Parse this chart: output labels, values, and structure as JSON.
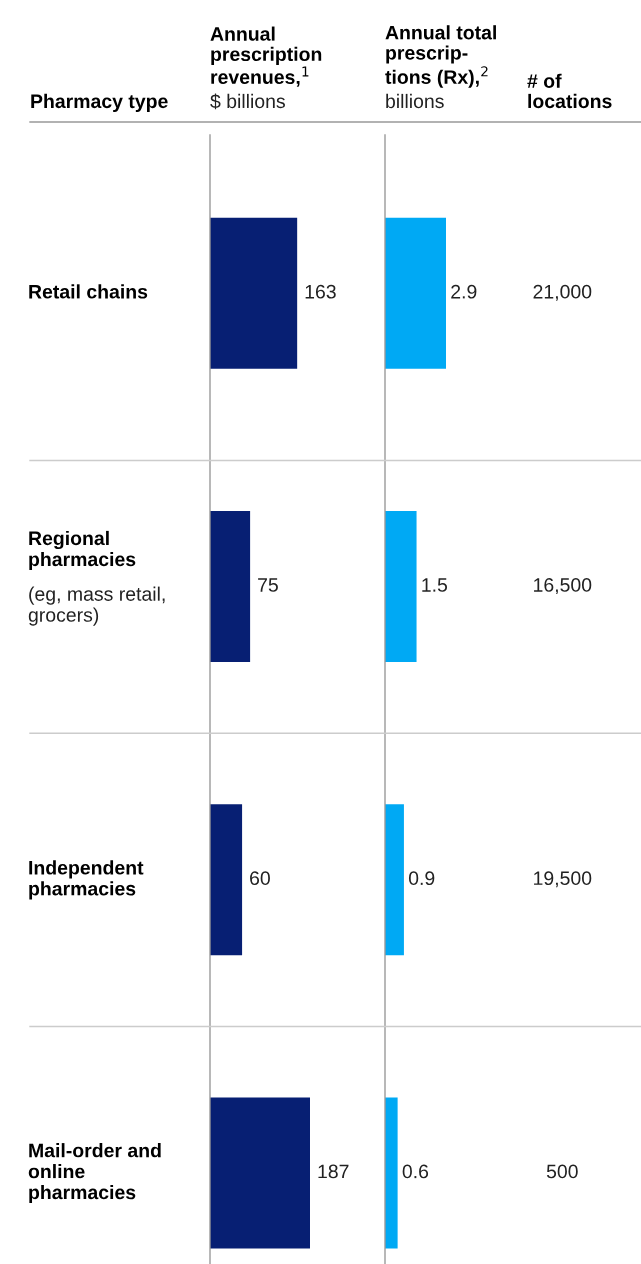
{
  "chart_data": [
    {
      "type": "bar",
      "orientation": "horizontal",
      "title": "Annual\nprescription\nrevenues,$^{1}$",
      "subtitle": "$ billions",
      "ylabel": "Pharmacy type",
      "categories": [
        "Retail chains",
        "Regional\npharmacies\n(eg, mass retail,\ngrocers)",
        "Independent\npharmacies",
        "Mail-order and\nonline\npharmacies"
      ],
      "values": [
        163,
        75,
        60,
        187
      ],
      "color": "#071f73",
      "data_labels": true
    },
    {
      "type": "bar",
      "orientation": "horizontal",
      "title": "Annual total\nprescrip-\ntions (Rx),$^{2}$",
      "subtitle": "billions",
      "values": [
        2.9,
        1.5,
        0.9,
        0.6
      ],
      "color": "#00a9f4",
      "data_labels": true
    },
    {
      "type": "other",
      "title": "# of\nlocations",
      "annotations": [
        "21,000",
        "16,500",
        "19,500",
        "500"
      ]
    }
  ]
}
